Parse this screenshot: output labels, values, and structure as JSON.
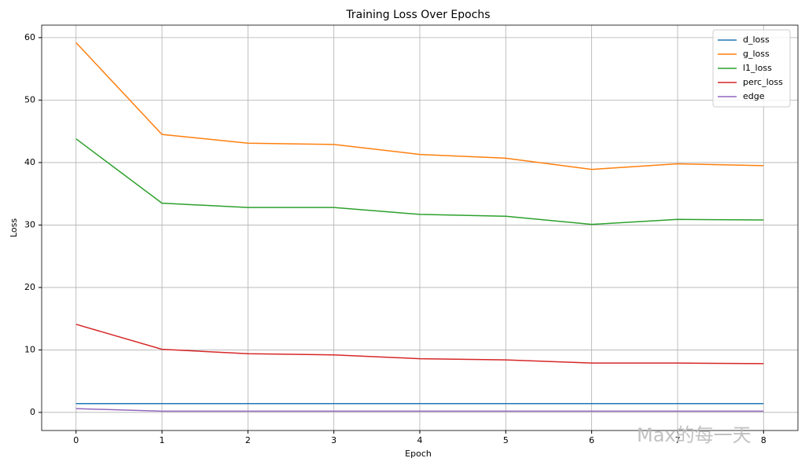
{
  "chart_data": {
    "type": "line",
    "title": "Training Loss Over Epochs",
    "xlabel": "Epoch",
    "ylabel": "Loss",
    "x": [
      0,
      1,
      2,
      3,
      4,
      5,
      6,
      7,
      8
    ],
    "series": [
      {
        "name": "d_loss",
        "color": "#1f77b4",
        "values": [
          1.4,
          1.4,
          1.4,
          1.4,
          1.4,
          1.4,
          1.4,
          1.4,
          1.4
        ]
      },
      {
        "name": "g_loss",
        "color": "#ff7f0e",
        "values": [
          59.2,
          44.5,
          43.1,
          42.9,
          41.3,
          40.7,
          38.9,
          39.8,
          39.5
        ]
      },
      {
        "name": "l1_loss",
        "color": "#2ca02c",
        "values": [
          43.8,
          33.5,
          32.8,
          32.8,
          31.7,
          31.4,
          30.1,
          30.9,
          30.8
        ]
      },
      {
        "name": "perc_loss",
        "color": "#d62728",
        "values": [
          14.1,
          10.1,
          9.4,
          9.2,
          8.6,
          8.4,
          7.9,
          7.9,
          7.8
        ]
      },
      {
        "name": "edge",
        "color": "#9467bd",
        "values": [
          0.6,
          0.2,
          0.2,
          0.2,
          0.2,
          0.2,
          0.2,
          0.2,
          0.2
        ]
      }
    ],
    "xlim": [
      -0.4,
      8.4
    ],
    "xticks": [
      0,
      1,
      2,
      3,
      4,
      5,
      6,
      7,
      8
    ],
    "ylim": [
      -2.9,
      62.0
    ],
    "yticks": [
      0,
      10,
      20,
      30,
      40,
      50,
      60
    ],
    "grid": true,
    "legend": "upper right",
    "watermark": "Max的每一天"
  }
}
